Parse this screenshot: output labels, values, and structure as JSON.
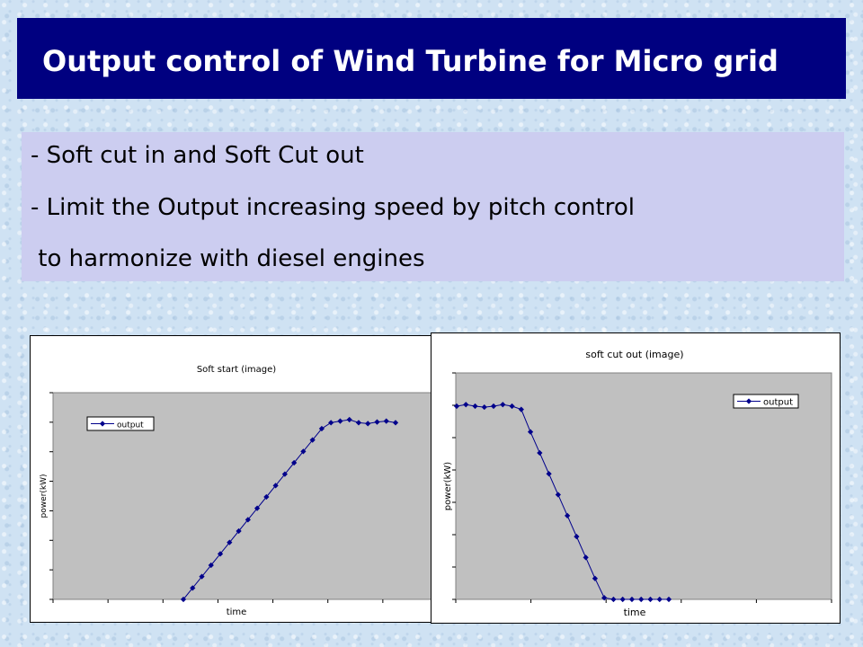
{
  "title": "Output control of Wind Turbine for Micro grid",
  "bullets": [
    "- Soft cut in and Soft Cut out",
    "- Limit the Output increasing speed by pitch control",
    " to harmonize with diesel engines"
  ],
  "colors": {
    "title_bg": "#000080",
    "title_text": "#ffffff",
    "bullet_box": "#cccdf0",
    "plot_area": "#c0c0c0",
    "series": "#00008b"
  },
  "chart_data": [
    {
      "type": "line",
      "title": "Soft start (image)",
      "xlabel": "time",
      "ylabel": "power(kW)",
      "grid": false,
      "legend_position": "top-left",
      "ylim": [
        0,
        60
      ],
      "x": [
        1,
        2,
        3,
        4,
        5,
        6,
        7,
        8,
        9,
        10,
        11,
        12,
        13,
        14,
        15,
        16,
        17,
        18,
        19,
        20,
        21,
        22,
        23,
        24
      ],
      "series": [
        {
          "name": "output",
          "values": [
            0,
            3.8,
            7.6,
            11.4,
            15.2,
            19.0,
            22.8,
            26.6,
            30.4,
            34.2,
            38.0,
            41.8,
            45.6,
            49.4,
            53.2,
            57.0,
            59.0,
            59.5,
            60.0,
            59.0,
            58.7,
            59.2,
            59.5,
            59.0
          ]
        }
      ]
    },
    {
      "type": "line",
      "title": "soft cut out (image)",
      "xlabel": "time",
      "ylabel": "power(kW)",
      "grid": false,
      "legend_position": "top-right",
      "ylim": [
        0,
        60
      ],
      "x": [
        1,
        2,
        3,
        4,
        5,
        6,
        7,
        8,
        9,
        10,
        11,
        12,
        13,
        14,
        15,
        16,
        17,
        18,
        19,
        20,
        21,
        22,
        23,
        24
      ],
      "series": [
        {
          "name": "output",
          "values": [
            60.0,
            60.5,
            60.0,
            59.7,
            60.0,
            60.5,
            60.0,
            59.0,
            52.0,
            45.5,
            39.0,
            32.5,
            26.0,
            19.5,
            13.0,
            6.5,
            0.5,
            0,
            0,
            0,
            0,
            0,
            0,
            0
          ]
        }
      ]
    }
  ]
}
